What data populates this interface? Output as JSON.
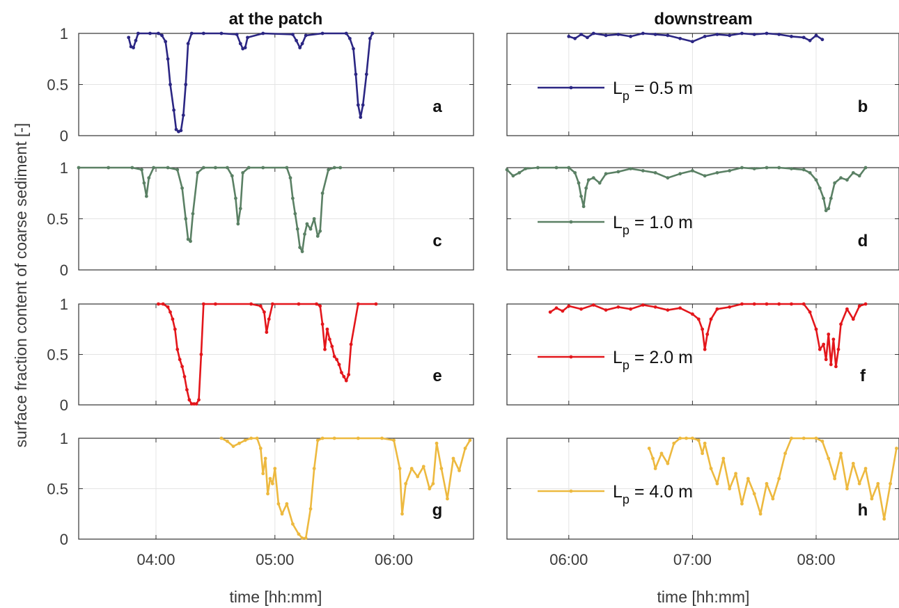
{
  "figure": {
    "ylabel": "surface fraction content of coarse sediment [-]",
    "columns": [
      {
        "title": "at the patch",
        "xlabel": "time [hh:mm]",
        "xticks": [
          "04:00",
          "05:00",
          "06:00"
        ],
        "xtick_values": [
          4.0,
          5.0,
          6.0
        ],
        "xlim": [
          3.35,
          6.67
        ]
      },
      {
        "title": "downstream",
        "xlabel": "time [hh:mm]",
        "xticks": [
          "06:00",
          "07:00",
          "08:00"
        ],
        "xtick_values": [
          6.0,
          7.0,
          8.0
        ],
        "xlim": [
          5.5,
          8.67
        ]
      }
    ],
    "yticks": [
      "0",
      "0.5",
      "1"
    ],
    "ytick_values": [
      0,
      0.5,
      1
    ]
  },
  "chart_data": [
    {
      "type": "line",
      "panel": "a",
      "column": "at the patch",
      "row": 1,
      "color": "#2b2683",
      "legend": "",
      "xlim": [
        3.35,
        6.67
      ],
      "ylim": [
        0,
        1
      ],
      "x": [
        3.77,
        3.79,
        3.81,
        3.83,
        3.85,
        3.95,
        4.02,
        4.05,
        4.08,
        4.1,
        4.12,
        4.15,
        4.17,
        4.19,
        4.21,
        4.23,
        4.25,
        4.27,
        4.3,
        4.4,
        4.55,
        4.68,
        4.71,
        4.73,
        4.75,
        4.77,
        4.9,
        5.15,
        5.18,
        5.21,
        5.23,
        5.26,
        5.4,
        5.6,
        5.63,
        5.66,
        5.68,
        5.7,
        5.72,
        5.74,
        5.77,
        5.8,
        5.82
      ],
      "y": [
        0.96,
        0.87,
        0.86,
        0.93,
        1.0,
        1.0,
        1.0,
        0.98,
        0.92,
        0.75,
        0.5,
        0.25,
        0.06,
        0.04,
        0.05,
        0.2,
        0.5,
        0.9,
        1.0,
        1.0,
        1.0,
        0.99,
        0.9,
        0.85,
        0.86,
        0.96,
        1.0,
        0.99,
        0.93,
        0.86,
        0.9,
        0.98,
        1.0,
        1.0,
        0.95,
        0.85,
        0.6,
        0.3,
        0.18,
        0.3,
        0.6,
        0.95,
        1.0
      ]
    },
    {
      "type": "line",
      "panel": "b",
      "column": "downstream",
      "row": 1,
      "color": "#2b2683",
      "legend": "L_p = 0.5 m",
      "xlim": [
        5.5,
        8.67
      ],
      "ylim": [
        0,
        1
      ],
      "x": [
        6.0,
        6.05,
        6.1,
        6.15,
        6.2,
        6.3,
        6.4,
        6.5,
        6.6,
        6.7,
        6.8,
        6.9,
        7.0,
        7.1,
        7.2,
        7.3,
        7.4,
        7.5,
        7.6,
        7.7,
        7.8,
        7.9,
        7.95,
        8.0,
        8.05
      ],
      "y": [
        0.97,
        0.95,
        0.99,
        0.96,
        1.0,
        0.98,
        0.99,
        0.97,
        1.0,
        0.99,
        0.98,
        0.95,
        0.92,
        0.97,
        0.99,
        0.98,
        1.0,
        0.99,
        1.0,
        0.99,
        0.97,
        0.96,
        0.93,
        0.98,
        0.94
      ]
    },
    {
      "type": "line",
      "panel": "c",
      "column": "at the patch",
      "row": 2,
      "color": "#5a8064",
      "legend": "",
      "xlim": [
        3.35,
        6.67
      ],
      "ylim": [
        0,
        1
      ],
      "x": [
        3.35,
        3.6,
        3.8,
        3.88,
        3.9,
        3.92,
        3.94,
        3.98,
        4.1,
        4.18,
        4.22,
        4.25,
        4.27,
        4.29,
        4.31,
        4.35,
        4.4,
        4.5,
        4.6,
        4.64,
        4.67,
        4.69,
        4.71,
        4.73,
        4.78,
        4.9,
        5.1,
        5.13,
        5.15,
        5.17,
        5.19,
        5.21,
        5.23,
        5.25,
        5.27,
        5.3,
        5.33,
        5.36,
        5.38,
        5.4,
        5.45,
        5.5,
        5.55
      ],
      "y": [
        1.0,
        1.0,
        1.0,
        0.98,
        0.85,
        0.72,
        0.9,
        1.0,
        1.0,
        0.98,
        0.8,
        0.5,
        0.3,
        0.28,
        0.55,
        0.95,
        1.0,
        1.0,
        1.0,
        0.92,
        0.7,
        0.45,
        0.6,
        0.95,
        1.0,
        1.0,
        1.0,
        0.9,
        0.7,
        0.55,
        0.4,
        0.22,
        0.18,
        0.35,
        0.45,
        0.4,
        0.5,
        0.33,
        0.38,
        0.75,
        0.98,
        1.0,
        1.0
      ]
    },
    {
      "type": "line",
      "panel": "d",
      "column": "downstream",
      "row": 2,
      "color": "#5a8064",
      "legend": "L_p = 1.0 m",
      "xlim": [
        5.5,
        8.67
      ],
      "ylim": [
        0,
        1
      ],
      "x": [
        5.5,
        5.55,
        5.6,
        5.65,
        5.75,
        5.9,
        6.0,
        6.05,
        6.08,
        6.1,
        6.12,
        6.14,
        6.16,
        6.2,
        6.25,
        6.3,
        6.4,
        6.5,
        6.6,
        6.7,
        6.8,
        6.9,
        7.0,
        7.1,
        7.2,
        7.3,
        7.4,
        7.5,
        7.6,
        7.7,
        7.8,
        7.9,
        7.95,
        8.0,
        8.03,
        8.06,
        8.08,
        8.1,
        8.12,
        8.15,
        8.2,
        8.25,
        8.3,
        8.35,
        8.4
      ],
      "y": [
        0.98,
        0.92,
        0.95,
        0.99,
        1.0,
        1.0,
        1.0,
        0.95,
        0.85,
        0.72,
        0.62,
        0.8,
        0.88,
        0.9,
        0.85,
        0.94,
        0.96,
        0.99,
        0.97,
        0.95,
        0.9,
        0.94,
        0.97,
        0.92,
        0.95,
        0.97,
        1.0,
        0.99,
        1.0,
        1.0,
        0.99,
        0.98,
        0.95,
        0.88,
        0.8,
        0.7,
        0.58,
        0.6,
        0.7,
        0.85,
        0.9,
        0.88,
        0.95,
        0.92,
        1.0
      ]
    },
    {
      "type": "line",
      "panel": "e",
      "column": "at the patch",
      "row": 3,
      "color": "#e3161b",
      "legend": "",
      "xlim": [
        3.35,
        6.67
      ],
      "ylim": [
        0,
        1
      ],
      "x": [
        4.02,
        4.06,
        4.1,
        4.12,
        4.14,
        4.16,
        4.18,
        4.2,
        4.22,
        4.24,
        4.26,
        4.28,
        4.3,
        4.32,
        4.34,
        4.36,
        4.38,
        4.4,
        4.5,
        4.8,
        4.88,
        4.91,
        4.93,
        4.95,
        4.98,
        5.2,
        5.35,
        5.38,
        5.4,
        5.42,
        5.44,
        5.46,
        5.48,
        5.5,
        5.52,
        5.54,
        5.56,
        5.58,
        5.6,
        5.62,
        5.64,
        5.7,
        5.85
      ],
      "y": [
        1.0,
        1.0,
        0.97,
        0.92,
        0.85,
        0.75,
        0.55,
        0.45,
        0.38,
        0.28,
        0.15,
        0.05,
        0.01,
        0.01,
        0.01,
        0.05,
        0.5,
        1.0,
        1.0,
        1.0,
        0.98,
        0.92,
        0.72,
        0.85,
        1.0,
        1.0,
        1.0,
        0.98,
        0.8,
        0.55,
        0.75,
        0.65,
        0.58,
        0.48,
        0.45,
        0.4,
        0.32,
        0.28,
        0.24,
        0.3,
        0.6,
        1.0,
        1.0
      ]
    },
    {
      "type": "line",
      "panel": "f",
      "column": "downstream",
      "row": 3,
      "color": "#e3161b",
      "legend": "L_p = 2.0 m",
      "xlim": [
        5.5,
        8.67
      ],
      "ylim": [
        0,
        1
      ],
      "x": [
        5.85,
        5.9,
        5.95,
        6.0,
        6.1,
        6.2,
        6.3,
        6.4,
        6.5,
        6.6,
        6.7,
        6.8,
        6.9,
        7.0,
        7.05,
        7.08,
        7.1,
        7.12,
        7.15,
        7.2,
        7.3,
        7.4,
        7.5,
        7.6,
        7.7,
        7.8,
        7.9,
        7.95,
        8.0,
        8.03,
        8.06,
        8.08,
        8.1,
        8.12,
        8.14,
        8.16,
        8.18,
        8.2,
        8.25,
        8.3,
        8.35,
        8.4
      ],
      "y": [
        0.92,
        0.96,
        0.93,
        0.98,
        0.95,
        0.99,
        0.94,
        0.97,
        0.95,
        0.99,
        0.97,
        0.94,
        0.96,
        0.9,
        0.85,
        0.75,
        0.55,
        0.7,
        0.85,
        0.95,
        0.97,
        1.0,
        1.0,
        1.0,
        1.0,
        1.0,
        1.0,
        0.92,
        0.75,
        0.55,
        0.6,
        0.45,
        0.7,
        0.4,
        0.65,
        0.38,
        0.55,
        0.8,
        0.95,
        0.85,
        0.98,
        1.0
      ]
    },
    {
      "type": "line",
      "panel": "g",
      "column": "at the patch",
      "row": 4,
      "color": "#edb93f",
      "legend": "",
      "xlim": [
        3.35,
        6.67
      ],
      "ylim": [
        0,
        1
      ],
      "x": [
        4.55,
        4.6,
        4.65,
        4.7,
        4.75,
        4.8,
        4.85,
        4.88,
        4.9,
        4.92,
        4.94,
        4.96,
        4.98,
        5.0,
        5.03,
        5.06,
        5.1,
        5.15,
        5.2,
        5.23,
        5.26,
        5.3,
        5.33,
        5.36,
        5.4,
        5.5,
        5.7,
        5.9,
        6.0,
        6.05,
        6.07,
        6.1,
        6.15,
        6.2,
        6.25,
        6.3,
        6.33,
        6.36,
        6.4,
        6.45,
        6.5,
        6.55,
        6.6,
        6.64
      ],
      "y": [
        1.0,
        0.97,
        0.92,
        0.95,
        0.98,
        1.0,
        1.0,
        0.9,
        0.65,
        0.8,
        0.45,
        0.6,
        0.55,
        0.7,
        0.35,
        0.25,
        0.35,
        0.15,
        0.05,
        0.01,
        0.01,
        0.3,
        0.7,
        0.98,
        1.0,
        1.0,
        1.0,
        1.0,
        0.98,
        0.7,
        0.25,
        0.55,
        0.7,
        0.62,
        0.72,
        0.5,
        0.55,
        0.95,
        0.7,
        0.4,
        0.8,
        0.68,
        0.9,
        0.98
      ]
    },
    {
      "type": "line",
      "panel": "h",
      "column": "downstream",
      "row": 4,
      "color": "#edb93f",
      "legend": "L_p = 4.0 m",
      "xlim": [
        5.5,
        8.67
      ],
      "ylim": [
        0,
        1
      ],
      "x": [
        6.65,
        6.68,
        6.7,
        6.75,
        6.8,
        6.85,
        6.9,
        6.95,
        7.0,
        7.05,
        7.08,
        7.1,
        7.15,
        7.2,
        7.25,
        7.3,
        7.35,
        7.4,
        7.45,
        7.5,
        7.55,
        7.6,
        7.65,
        7.7,
        7.75,
        7.8,
        7.9,
        8.0,
        8.05,
        8.1,
        8.15,
        8.2,
        8.25,
        8.3,
        8.35,
        8.4,
        8.45,
        8.5,
        8.55,
        8.6,
        8.65
      ],
      "y": [
        0.9,
        0.8,
        0.7,
        0.85,
        0.75,
        0.95,
        1.0,
        1.0,
        1.0,
        0.98,
        0.85,
        0.95,
        0.7,
        0.55,
        0.8,
        0.5,
        0.65,
        0.35,
        0.6,
        0.45,
        0.25,
        0.55,
        0.4,
        0.6,
        0.85,
        1.0,
        1.0,
        1.0,
        0.97,
        0.8,
        0.6,
        0.85,
        0.5,
        0.75,
        0.55,
        0.7,
        0.4,
        0.55,
        0.2,
        0.55,
        0.9
      ]
    }
  ]
}
